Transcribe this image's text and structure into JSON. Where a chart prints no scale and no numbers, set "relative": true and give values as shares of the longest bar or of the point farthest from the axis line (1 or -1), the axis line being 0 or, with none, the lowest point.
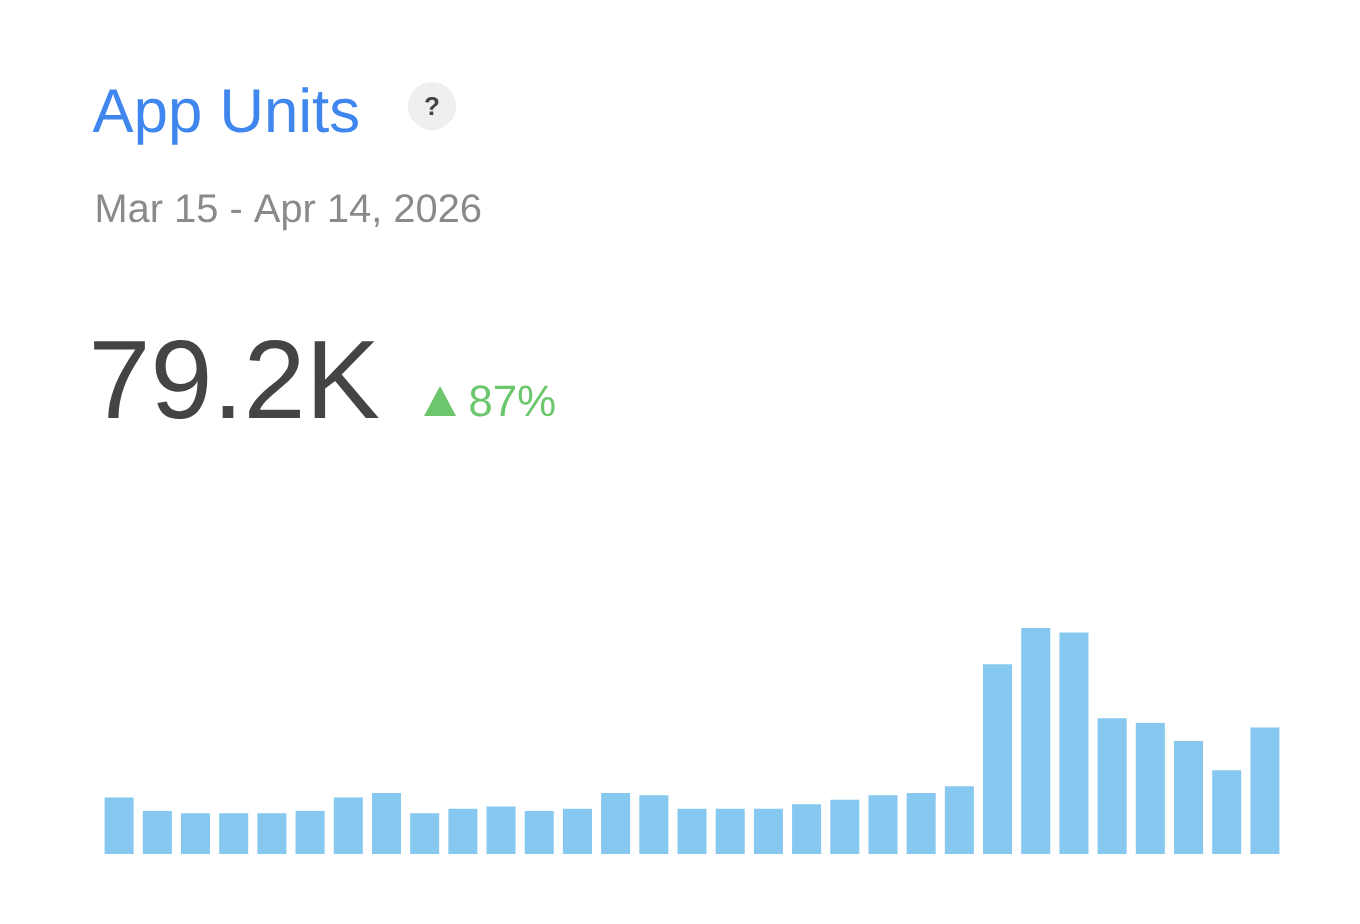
{
  "chart_data": {
    "type": "bar",
    "title": "App Units",
    "subtitle": "Mar 15 - Apr 14, 2026",
    "annotations": [
      "?",
      "79.2K",
      "87%"
    ],
    "relative": true,
    "color": "#86c8ef",
    "categories": [
      null,
      null,
      null,
      null,
      null,
      null,
      null,
      null,
      null,
      null,
      null,
      null,
      null,
      null,
      null,
      null,
      null,
      null,
      null,
      null,
      null,
      null,
      null,
      null,
      null,
      null,
      null,
      null,
      null,
      null,
      null
    ],
    "values": [
      0.25,
      0.19,
      0.18,
      0.18,
      0.18,
      0.19,
      0.25,
      0.27,
      0.18,
      0.2,
      0.21,
      0.19,
      0.2,
      0.27,
      0.26,
      0.2,
      0.2,
      0.2,
      0.22,
      0.24,
      0.26,
      0.27,
      0.3,
      0.84,
      1,
      0.98,
      0.6,
      0.58,
      0.5,
      0.37,
      0.56
    ]
  }
}
